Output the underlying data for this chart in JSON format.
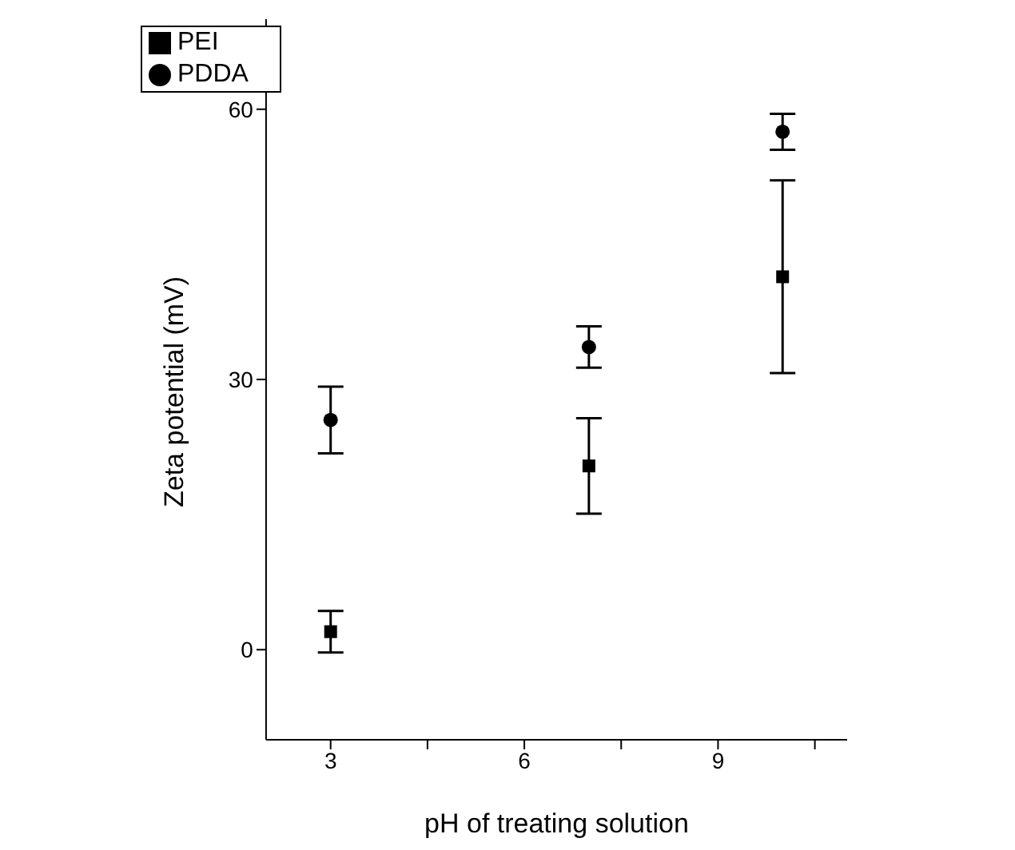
{
  "chart_data": {
    "type": "scatter",
    "xlabel": "pH of treating solution",
    "ylabel": "Zeta potential (mV)",
    "x": [
      3,
      7,
      10
    ],
    "series": [
      {
        "name": "PEI",
        "color": "#000000",
        "marker": "square",
        "values": [
          2,
          20.4,
          41.4
        ],
        "errors": [
          2.3,
          5.3,
          10.7
        ]
      },
      {
        "name": "PDDA",
        "color": "#000000",
        "marker": "circle",
        "values": [
          25.5,
          33.6,
          57.5
        ],
        "errors": [
          3.7,
          2.3,
          2
        ]
      }
    ],
    "xlim": [
      2,
      11
    ],
    "xticks": [
      3,
      {
        "value": 4.5,
        "label": null
      },
      6,
      {
        "value": 7.5,
        "label": null
      },
      9,
      {
        "value": 10.5,
        "label": null
      }
    ],
    "ylim": [
      -10,
      70
    ],
    "yticks": [
      0,
      30,
      60
    ],
    "grid": false,
    "legend": "top left"
  }
}
